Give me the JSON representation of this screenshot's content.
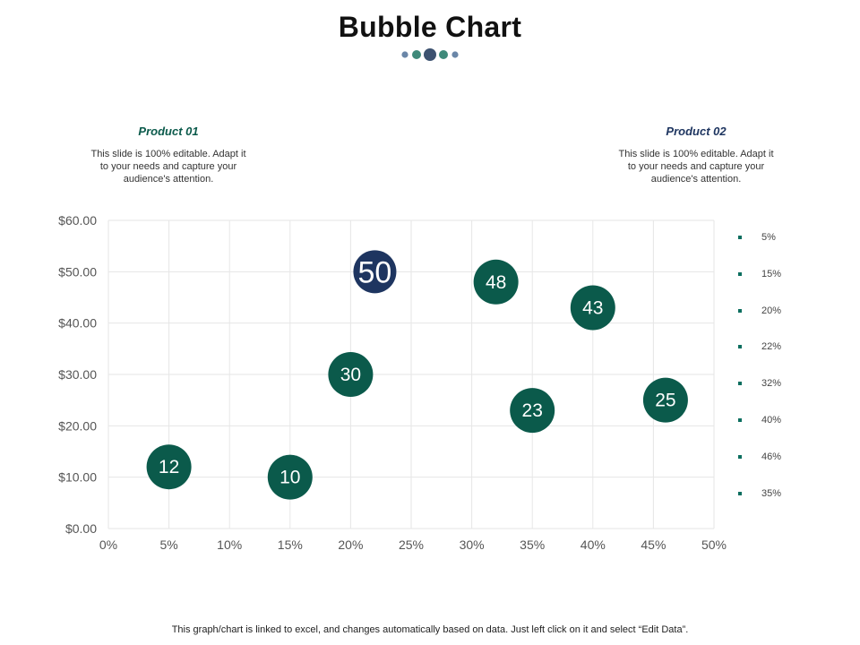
{
  "title": "Bubble Chart",
  "colors": {
    "primary": "#0b5a4b",
    "navy": "#1e3560",
    "teal": "#3f8a7a",
    "slate": "#6a86a8",
    "legend": "#0b6e5f",
    "grid": "#e6e6e6"
  },
  "products": [
    {
      "title": "Product 01",
      "color": "#0b5a4b",
      "description": "This slide is 100% editable. Adapt it to your needs and capture your audience's attention."
    },
    {
      "title": "Product 02",
      "color": "#1e3560",
      "description": "This slide is 100% editable. Adapt it to your needs and capture your audience's attention."
    }
  ],
  "footer": "This graph/chart is linked to excel,  and changes automatically based on data. Just left click on it and select “Edit Data”.",
  "chart_data": {
    "type": "scatter",
    "title": "",
    "xlabel": "",
    "ylabel": "",
    "xlim": [
      0,
      50
    ],
    "ylim": [
      0,
      60
    ],
    "x_ticks": [
      "0%",
      "5%",
      "10%",
      "15%",
      "20%",
      "25%",
      "30%",
      "35%",
      "40%",
      "45%",
      "50%"
    ],
    "y_ticks": [
      "$0.00",
      "$10.00",
      "$20.00",
      "$30.00",
      "$40.00",
      "$50.00",
      "$60.00"
    ],
    "grid": true,
    "legend_position": "right",
    "legend": [
      "5%",
      "15%",
      "20%",
      "22%",
      "32%",
      "40%",
      "46%",
      "35%"
    ],
    "points": [
      {
        "x": 5,
        "y": 12,
        "label": "12",
        "highlight": false
      },
      {
        "x": 15,
        "y": 10,
        "label": "10",
        "highlight": false
      },
      {
        "x": 20,
        "y": 30,
        "label": "30",
        "highlight": false
      },
      {
        "x": 22,
        "y": 50,
        "label": "50",
        "highlight": true
      },
      {
        "x": 32,
        "y": 48,
        "label": "48",
        "highlight": false
      },
      {
        "x": 40,
        "y": 43,
        "label": "43",
        "highlight": false
      },
      {
        "x": 46,
        "y": 25,
        "label": "25",
        "highlight": false
      },
      {
        "x": 35,
        "y": 23,
        "label": "23",
        "highlight": false
      }
    ]
  }
}
